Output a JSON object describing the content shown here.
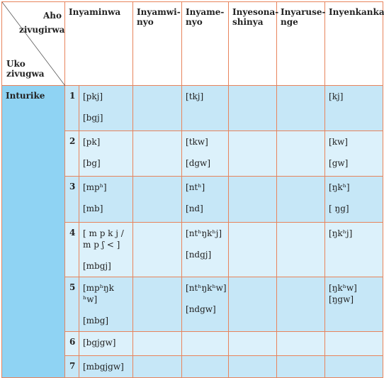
{
  "header": {
    "corner_top": "Aho zivugirwa",
    "corner_bottom": "Uko zivugwa",
    "columns": [
      "Inyaminwa",
      "Inyamwi-nyo",
      "Inyame-nyo",
      "Inyesona-shinya",
      "Inyaruse-nge",
      "Inyenkanka"
    ]
  },
  "row_label": "Inturike",
  "rows": [
    {
      "number": "1",
      "cells": [
        [
          "[pkj]",
          "[bgj]"
        ],
        [],
        [
          "[tkj]"
        ],
        [],
        [],
        [
          "[kj]"
        ]
      ]
    },
    {
      "number": "2",
      "cells": [
        [
          "[pk]",
          "[bg]"
        ],
        [],
        [
          "[tkw]",
          "[dgw]"
        ],
        [],
        [],
        [
          "[kw]",
          "[gw]"
        ]
      ]
    },
    {
      "number": "3",
      "cells": [
        [
          "[mpʰ]",
          "[mb]"
        ],
        [],
        [
          "[ntʰ]",
          "[nd]"
        ],
        [],
        [],
        [
          "[ŋkʰ]",
          "[ ŋg]"
        ]
      ]
    },
    {
      "number": "4",
      "cells": [
        [
          "[ m p k j / m p ʃ < ]",
          "[mbgj]"
        ],
        [],
        [
          "[ntʰŋkʰj]",
          "[ndgj]"
        ],
        [],
        [],
        [
          "[ŋkʰj]"
        ]
      ]
    },
    {
      "number": "5",
      "cells": [
        [
          "[mpʰŋk ʰw]",
          "[mbg]"
        ],
        [],
        [
          "[ntʰŋkʰw]",
          "[ndgw]"
        ],
        [],
        [],
        [
          "[ŋkʰw] [ŋgw]"
        ]
      ]
    },
    {
      "number": "6",
      "cells": [
        [
          "[bgjgw]"
        ],
        [],
        [],
        [],
        [],
        []
      ]
    },
    {
      "number": "7",
      "cells": [
        [
          "[mbgjgw]"
        ],
        [],
        [],
        [],
        [],
        []
      ]
    }
  ]
}
